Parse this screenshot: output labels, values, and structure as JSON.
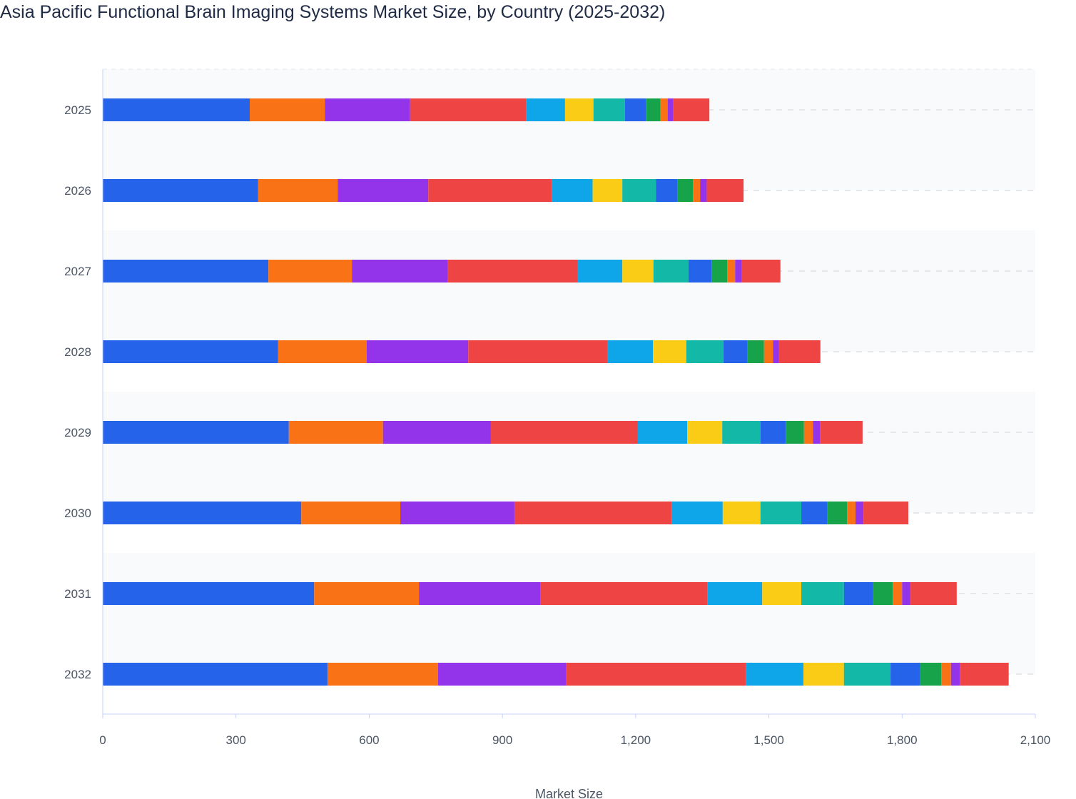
{
  "chart_data": {
    "type": "bar",
    "orientation": "horizontal",
    "stacked": true,
    "title": "Asia Pacific Functional Brain Imaging Systems Market Size, by Country (2025-2032)",
    "xlabel": "Market Size",
    "ylabel": "",
    "xlim": [
      0,
      2100
    ],
    "xticks": [
      "0",
      "300",
      "600",
      "900",
      "1,200",
      "1,500",
      "1,800",
      "2,100"
    ],
    "grid": true,
    "legend": "none",
    "categories": [
      "2025",
      "2026",
      "2027",
      "2028",
      "2029",
      "2030",
      "2031",
      "2032"
    ],
    "segment_colors": [
      "#2563eb",
      "#f97316",
      "#9333ea",
      "#ef4444",
      "#0ea5e9",
      "#facc15",
      "#14b8a6",
      "#2563eb",
      "#16a34a",
      "#f97316",
      "#9333ea",
      "#ef4444"
    ],
    "stacks": [
      [
        331,
        169,
        192,
        261,
        88,
        64,
        71,
        47,
        33,
        16,
        13,
        81
      ],
      [
        350,
        179,
        204,
        278,
        92,
        67,
        76,
        48,
        35,
        16,
        15,
        83
      ],
      [
        373,
        188,
        215,
        294,
        100,
        70,
        79,
        52,
        35,
        18,
        14,
        88
      ],
      [
        395,
        199,
        229,
        313,
        103,
        75,
        84,
        53,
        38,
        20,
        14,
        93
      ],
      [
        419,
        212,
        243,
        331,
        111,
        79,
        86,
        57,
        41,
        20,
        16,
        96
      ],
      [
        447,
        223,
        257,
        354,
        115,
        85,
        92,
        59,
        44,
        19,
        18,
        101
      ],
      [
        476,
        236,
        273,
        377,
        123,
        88,
        96,
        66,
        44,
        21,
        19,
        104
      ],
      [
        506,
        249,
        289,
        404,
        130,
        91,
        105,
        67,
        47,
        22,
        20,
        110
      ]
    ]
  }
}
